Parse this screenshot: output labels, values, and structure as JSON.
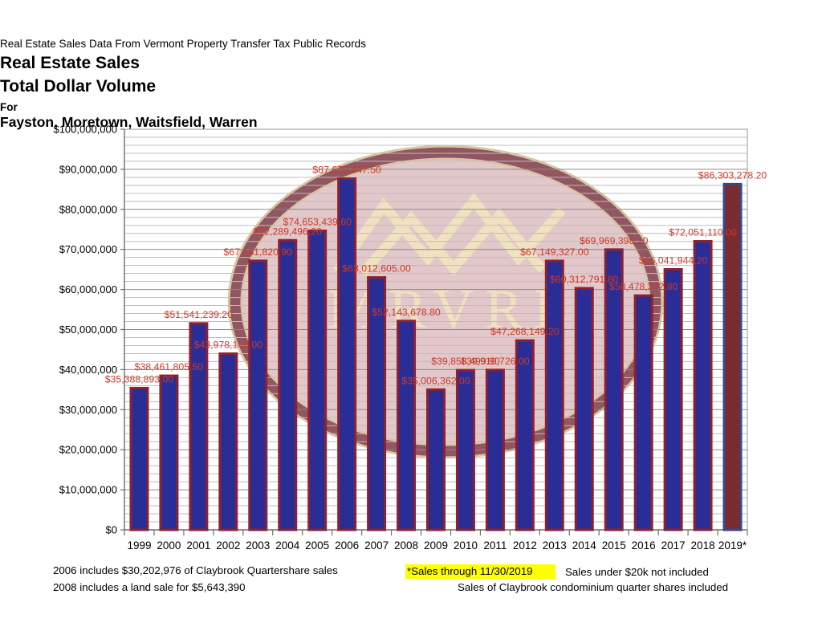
{
  "header": {
    "source_line": "Real Estate Sales Data From Vermont Property Transfer Tax Public Records",
    "title": "Real Estate Sales",
    "subtitle": "Total Dollar Volume",
    "for_label": "For",
    "towns": "Fayston, Moretown, Waitsfield, Warren"
  },
  "watermark": {
    "text": "MRVRE",
    "ring_color": "#905761",
    "interior_color": "#e2c8ca",
    "gold_color": "#d8c59c",
    "cream_color": "#f0e2c0"
  },
  "chart_data": {
    "type": "bar",
    "title": "Real Estate Sales Total Dollar Volume for Fayston, Moretown, Waitsfield, Warren",
    "xlabel": "",
    "ylabel": "",
    "ylim": [
      0,
      100000000
    ],
    "y_major_step": 10000000,
    "y_minor_step": 2000000,
    "grid": "horizontal major+minor",
    "legend_position": "none",
    "y_tick_labels": [
      "$0",
      "$10,000,000",
      "$20,000,000",
      "$30,000,000",
      "$40,000,000",
      "$50,000,000",
      "$60,000,000",
      "$70,000,000",
      "$80,000,000",
      "$90,000,000",
      "$100,000,000"
    ],
    "categories": [
      "1999",
      "2000",
      "2001",
      "2002",
      "2003",
      "2004",
      "2005",
      "2006",
      "2007",
      "2008",
      "2009",
      "2010",
      "2011",
      "2012",
      "2013",
      "2014",
      "2015",
      "2016",
      "2017",
      "2018",
      "2019*"
    ],
    "values": [
      35388893.0,
      38461805.5,
      51541239.2,
      43978144.0,
      67161820.9,
      72289496.2,
      74653439.6,
      87679447.5,
      63012605.0,
      52143678.8,
      35006362.0,
      39858499.9,
      39910726.0,
      47268149.2,
      67149327.0,
      60312791.8,
      69969398.1,
      58478322.8,
      65041944.2,
      72051110.0,
      86303278.2
    ],
    "value_labels": [
      "$35,388,893.00",
      "$38,461,805.50",
      "$51,541,239.20",
      "$43,978,144.00",
      "$67,161,820.90",
      "$72,289,496.20",
      "$74,653,439.60",
      "$87,679,447.50",
      "$63,012,605.00",
      "$52,143,678.80",
      "$35,006,362.00",
      "$39,858,499.90",
      "$39,910,726.00",
      "$47,268,149.20",
      "$67,149,327.00",
      "$60,312,791.80",
      "$69,969,398.10",
      "$58,478,322.80",
      "$65,041,944.20",
      "$72,051,110.00",
      "$86,303,278.20"
    ],
    "bar_fill": "#2a2d96",
    "bar_border": "#8e2130",
    "last_bar_fill": "#7b2a2d",
    "last_bar_border": "#35488e",
    "value_label_color": "#cc3928",
    "major_grid_color": "#8a8a8a",
    "minor_grid_color": "#bdbdbd",
    "axis_color": "#6e6e6e"
  },
  "footnotes": {
    "left_line1": "2006 includes $30,202,976 of Claybrook Quartershare sales",
    "left_line2": "2008 includes a land sale for $5,643,390",
    "highlight": "*Sales through 11/30/2019",
    "highlight_color": "#ffff00",
    "right_top": "Sales under $20k not included",
    "right_bottom": "Sales of Claybrook condominium quarter shares included"
  }
}
